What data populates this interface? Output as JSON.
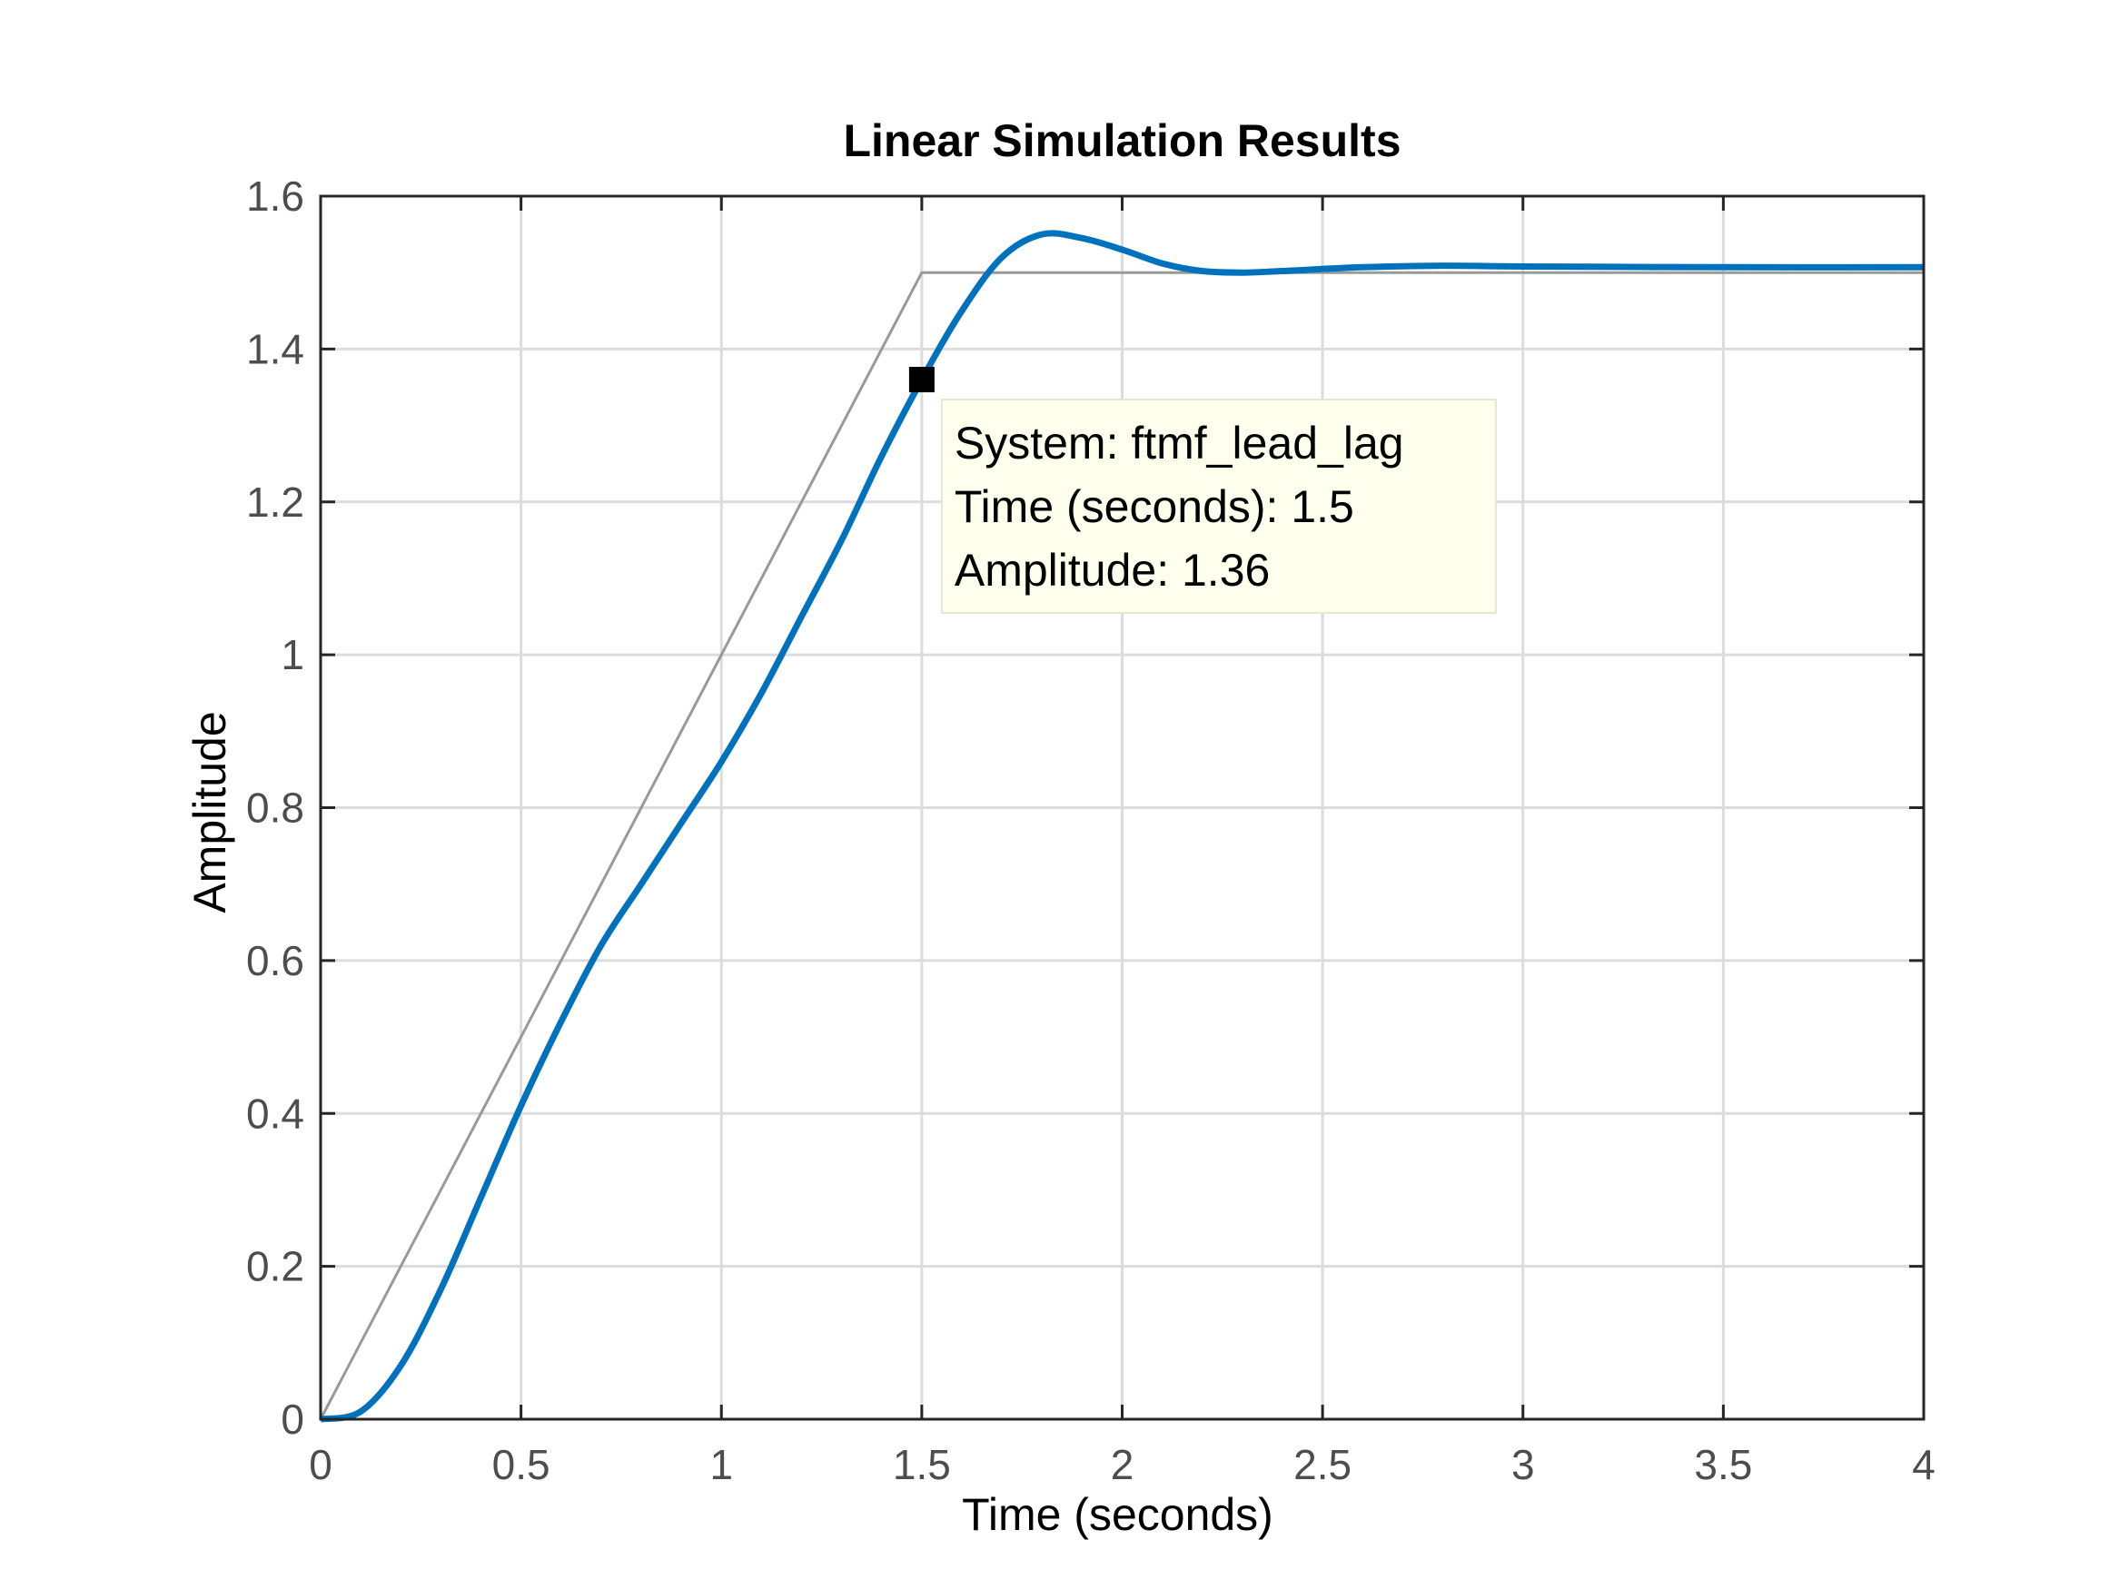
{
  "chart_data": {
    "type": "line",
    "title": "Linear Simulation Results",
    "xlabel": "Time (seconds)",
    "ylabel": "Amplitude",
    "xlim": [
      0,
      4
    ],
    "ylim": [
      0,
      1.6
    ],
    "x_ticks": [
      "0",
      "0.5",
      "1",
      "1.5",
      "2",
      "2.5",
      "3",
      "3.5",
      "4"
    ],
    "y_ticks": [
      "0",
      "0.2",
      "0.4",
      "0.6",
      "0.8",
      "1",
      "1.2",
      "1.4",
      "1.6"
    ],
    "grid": true,
    "series": [
      {
        "color": "#0072BD",
        "role": "response",
        "points": [
          [
            0,
            0
          ],
          [
            0.1,
            0.01
          ],
          [
            0.2,
            0.07
          ],
          [
            0.3,
            0.17
          ],
          [
            0.4,
            0.29
          ],
          [
            0.5,
            0.41
          ],
          [
            0.6,
            0.52
          ],
          [
            0.7,
            0.62
          ],
          [
            0.8,
            0.7
          ],
          [
            0.9,
            0.78
          ],
          [
            1.0,
            0.86
          ],
          [
            1.1,
            0.95
          ],
          [
            1.2,
            1.05
          ],
          [
            1.3,
            1.15
          ],
          [
            1.4,
            1.26
          ],
          [
            1.5,
            1.36
          ],
          [
            1.6,
            1.45
          ],
          [
            1.7,
            1.52
          ],
          [
            1.8,
            1.55
          ],
          [
            1.9,
            1.545
          ],
          [
            2.0,
            1.53
          ],
          [
            2.1,
            1.512
          ],
          [
            2.2,
            1.502
          ],
          [
            2.3,
            1.5
          ],
          [
            2.4,
            1.502
          ],
          [
            2.6,
            1.507
          ],
          [
            2.8,
            1.509
          ],
          [
            3.0,
            1.508
          ],
          [
            3.5,
            1.507
          ],
          [
            4.0,
            1.507
          ]
        ]
      },
      {
        "color": "#999999",
        "role": "input",
        "points": [
          [
            0,
            0
          ],
          [
            1.5,
            1.5
          ],
          [
            4.0,
            1.5
          ]
        ]
      }
    ],
    "datatip": {
      "x": 1.5,
      "y": 1.36,
      "lines": [
        "System: ftmf_lead_lag",
        "Time (seconds): 1.5",
        "Amplitude: 1.36"
      ]
    }
  }
}
